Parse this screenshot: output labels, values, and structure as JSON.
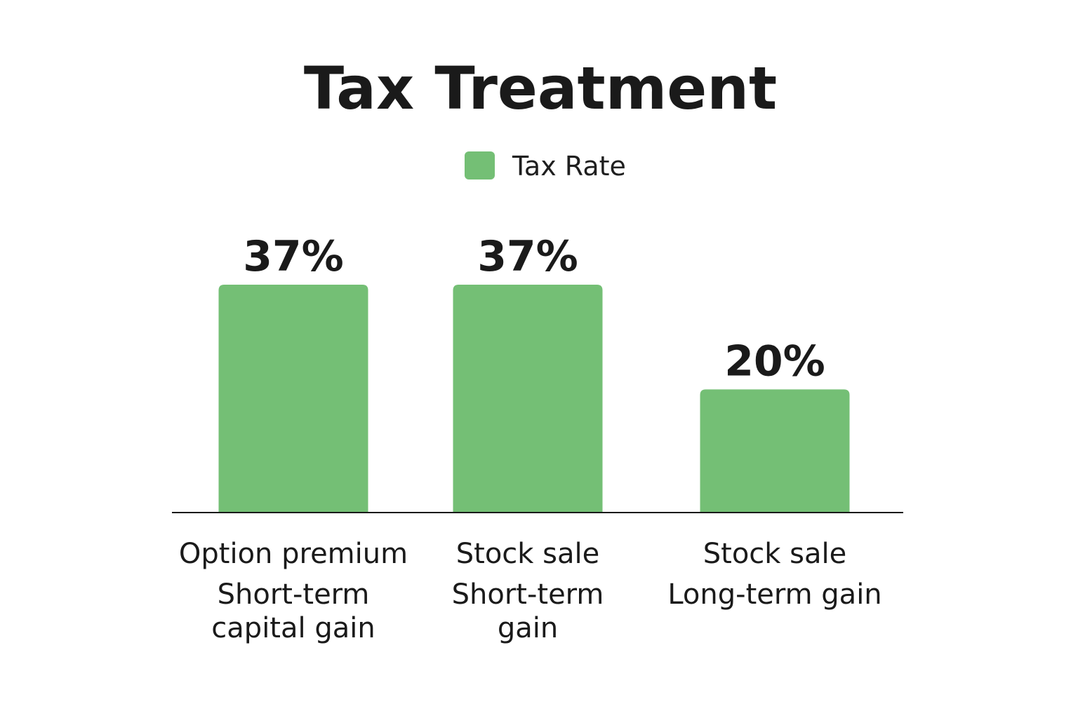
{
  "chart_data": {
    "type": "bar",
    "title": "Tax Treatment",
    "legend": [
      "Tax Rate"
    ],
    "legend_position": "top-center",
    "bar_color": "#74bf75",
    "grid": false,
    "ylim": [
      0,
      37
    ],
    "categories": [
      {
        "line1": "Option premium",
        "line2": "Short-term",
        "line3": "capital gain"
      },
      {
        "line1": "Stock sale",
        "line2": "Short-term",
        "line3": "gain"
      },
      {
        "line1": "Stock sale",
        "line2": "Long-term gain",
        "line3": ""
      }
    ],
    "series": [
      {
        "name": "Tax Rate",
        "values": [
          37,
          37,
          20
        ]
      }
    ],
    "value_labels": [
      "37%",
      "37%",
      "20%"
    ]
  }
}
